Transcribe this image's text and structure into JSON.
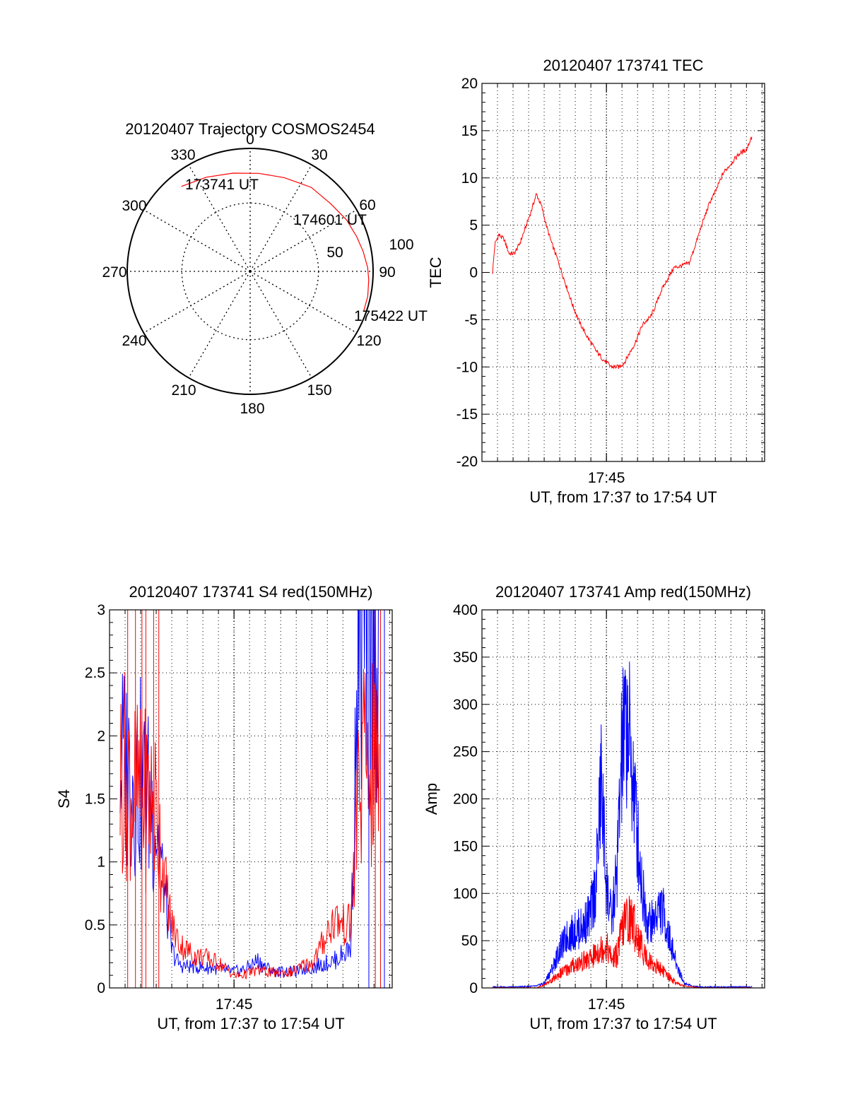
{
  "chart_data": [
    {
      "type": "polar",
      "title": "20120407 Trajectory COSMOS2454",
      "azimuth_labels": [
        "0",
        "30",
        "60",
        "90",
        "120",
        "150",
        "180",
        "210",
        "240",
        "270",
        "300",
        "330"
      ],
      "radial_labels": [
        "50",
        "100"
      ],
      "grid": true,
      "series": [
        {
          "color": "#ff0000",
          "points": [
            {
              "az": 321,
              "zen": 80
            },
            {
              "az": 335,
              "zen": 76
            },
            {
              "az": 350,
              "zen": 73
            },
            {
              "az": 5,
              "zen": 72
            },
            {
              "az": 20,
              "zen": 73
            },
            {
              "az": 36,
              "zen": 76
            },
            {
              "az": 50,
              "zen": 77
            },
            {
              "az": 62,
              "zen": 80
            },
            {
              "az": 72,
              "zen": 82
            },
            {
              "az": 80,
              "zen": 84
            },
            {
              "az": 88,
              "zen": 86
            },
            {
              "az": 94,
              "zen": 87
            },
            {
              "az": 102,
              "zen": 88
            },
            {
              "az": 109,
              "zen": 88
            }
          ]
        }
      ],
      "annotations": [
        "173741 UT",
        "174601 UT",
        "175422 UT"
      ]
    },
    {
      "type": "line",
      "title": "20120407 173741 TEC",
      "xlabel": "UT, from 17:37 to 17:54 UT",
      "ylabel": "TEC",
      "xlim": [
        "17:37:00",
        "17:55:10"
      ],
      "ylim": [
        -20,
        20
      ],
      "yticks": [
        "-20",
        "-15",
        "-10",
        "-5",
        "0",
        "5",
        "10",
        "15",
        "20"
      ],
      "xticks": [
        "17:45"
      ],
      "grid": true,
      "series": [
        {
          "color": "#ff0000",
          "x": [
            "17:37:41",
            "17:37:50",
            "17:38:05",
            "17:38:25",
            "17:38:45",
            "17:39:05",
            "17:39:25",
            "17:39:45",
            "17:40:10",
            "17:40:30",
            "17:40:50",
            "17:41:10",
            "17:41:30",
            "17:41:50",
            "17:42:20",
            "17:42:50",
            "17:43:20",
            "17:43:50",
            "17:44:20",
            "17:44:50",
            "17:45:20",
            "17:45:50",
            "17:46:10",
            "17:46:30",
            "17:46:50",
            "17:47:20",
            "17:47:50",
            "17:48:10",
            "17:48:30",
            "17:48:50",
            "17:49:20",
            "17:49:50",
            "17:50:20",
            "17:50:50",
            "17:51:20",
            "17:51:40",
            "17:52:00",
            "17:52:30",
            "17:53:00",
            "17:53:30",
            "17:54:00",
            "17:54:22"
          ],
          "y": [
            0.0,
            3.0,
            4.0,
            3.5,
            2.0,
            2.0,
            3.0,
            4.5,
            6.5,
            8.3,
            7.0,
            4.8,
            3.0,
            1.5,
            -1.0,
            -3.5,
            -5.5,
            -7.0,
            -8.3,
            -9.3,
            -10.0,
            -10.0,
            -9.5,
            -8.5,
            -7.5,
            -5.5,
            -4.7,
            -3.5,
            -2.0,
            -1.0,
            0.5,
            0.7,
            1.0,
            3.5,
            6.0,
            7.5,
            8.5,
            10.5,
            11.5,
            12.5,
            13.0,
            14.5
          ]
        }
      ]
    },
    {
      "type": "line",
      "title": "20120407 173741 S4 red(150MHz)",
      "xlabel": "UT, from 17:37 to 17:54 UT",
      "ylabel": "S4",
      "xlim": [
        "17:37:00",
        "17:55:10"
      ],
      "ylim": [
        0,
        3
      ],
      "yticks": [
        "0",
        "0.5",
        "1",
        "1.5",
        "2",
        "2.5",
        "3"
      ],
      "xticks": [
        "17:45"
      ],
      "grid": true,
      "series": [
        {
          "color": "#0000ff",
          "x": [
            "17:37:41",
            "17:38:00",
            "17:38:30",
            "17:39:00",
            "17:39:30",
            "17:40:00",
            "17:40:30",
            "17:41:00",
            "17:41:30",
            "17:42:00",
            "17:42:30",
            "17:43:00",
            "17:43:30",
            "17:44:00",
            "17:44:30",
            "17:45:00",
            "17:45:30",
            "17:46:00",
            "17:46:30",
            "17:47:00",
            "17:47:30",
            "17:48:00",
            "17:48:30",
            "17:49:00",
            "17:49:30",
            "17:50:00",
            "17:50:30",
            "17:51:00",
            "17:51:30",
            "17:52:00",
            "17:52:30",
            "17:53:00",
            "17:53:30",
            "17:54:00",
            "17:54:22"
          ],
          "y": [
            1.8,
            1.75,
            1.7,
            1.65,
            1.5,
            1.3,
            0.8,
            0.3,
            0.18,
            0.17,
            0.17,
            0.16,
            0.16,
            0.15,
            0.14,
            0.13,
            0.14,
            0.17,
            0.22,
            0.17,
            0.13,
            0.13,
            0.13,
            0.13,
            0.15,
            0.16,
            0.18,
            0.2,
            0.22,
            0.27,
            0.32,
            2.6,
            2.8,
            2.8,
            2.8
          ]
        },
        {
          "color": "#ff0000",
          "x": [
            "17:37:41",
            "17:38:00",
            "17:38:30",
            "17:39:00",
            "17:39:30",
            "17:40:00",
            "17:40:30",
            "17:41:00",
            "17:41:30",
            "17:42:00",
            "17:42:30",
            "17:43:00",
            "17:43:30",
            "17:44:00",
            "17:44:30",
            "17:45:00",
            "17:45:30",
            "17:46:00",
            "17:46:30",
            "17:47:00",
            "17:47:30",
            "17:48:00",
            "17:48:30",
            "17:49:00",
            "17:49:30",
            "17:50:00",
            "17:50:30",
            "17:51:00",
            "17:51:30",
            "17:52:00",
            "17:52:30",
            "17:53:00",
            "17:53:30",
            "17:54:00",
            "17:54:22"
          ],
          "y": [
            1.7,
            1.7,
            1.6,
            1.5,
            1.5,
            1.4,
            0.9,
            0.5,
            0.35,
            0.3,
            0.25,
            0.25,
            0.22,
            0.2,
            0.15,
            0.1,
            0.1,
            0.12,
            0.14,
            0.13,
            0.12,
            0.12,
            0.12,
            0.14,
            0.18,
            0.2,
            0.3,
            0.45,
            0.55,
            0.5,
            0.5,
            1.6,
            1.8,
            1.7,
            1.8
          ]
        }
      ]
    },
    {
      "type": "line",
      "title": "20120407 173741 Amp red(150MHz)",
      "xlabel": "UT, from 17:37 to 17:54 UT",
      "ylabel": "Amp",
      "xlim": [
        "17:37:00",
        "17:55:10"
      ],
      "ylim": [
        0,
        400
      ],
      "yticks": [
        "0",
        "50",
        "100",
        "150",
        "200",
        "250",
        "300",
        "350",
        "400"
      ],
      "xticks": [
        "17:45"
      ],
      "grid": true,
      "series": [
        {
          "color": "#0000ff",
          "x": [
            "17:37:41",
            "17:39:00",
            "17:40:30",
            "17:41:00",
            "17:41:30",
            "17:42:00",
            "17:42:30",
            "17:43:00",
            "17:43:30",
            "17:44:00",
            "17:44:20",
            "17:44:40",
            "17:45:00",
            "17:45:20",
            "17:45:40",
            "17:46:00",
            "17:46:20",
            "17:46:40",
            "17:47:00",
            "17:47:20",
            "17:47:40",
            "17:48:00",
            "17:48:20",
            "17:48:40",
            "17:49:00",
            "17:49:30",
            "17:50:00",
            "17:50:30",
            "17:51:00",
            "17:52:00",
            "17:53:00",
            "17:54:22"
          ],
          "y": [
            1,
            1,
            2,
            5,
            20,
            40,
            55,
            60,
            65,
            80,
            110,
            220,
            110,
            70,
            120,
            250,
            280,
            230,
            160,
            100,
            70,
            70,
            85,
            80,
            55,
            25,
            5,
            2,
            1,
            1,
            1,
            1
          ]
        },
        {
          "color": "#ff0000",
          "x": [
            "17:37:41",
            "17:40:30",
            "17:41:00",
            "17:41:30",
            "17:42:00",
            "17:42:30",
            "17:43:00",
            "17:43:30",
            "17:44:00",
            "17:44:30",
            "17:45:00",
            "17:45:20",
            "17:45:40",
            "17:46:00",
            "17:46:20",
            "17:46:40",
            "17:47:00",
            "17:47:20",
            "17:47:40",
            "17:48:00",
            "17:48:30",
            "17:49:00",
            "17:49:30",
            "17:50:00",
            "17:51:00",
            "17:54:22"
          ],
          "y": [
            0,
            0,
            3,
            8,
            15,
            20,
            25,
            28,
            30,
            40,
            45,
            30,
            35,
            60,
            75,
            70,
            55,
            40,
            30,
            25,
            20,
            12,
            5,
            2,
            0,
            0
          ]
        }
      ]
    }
  ]
}
